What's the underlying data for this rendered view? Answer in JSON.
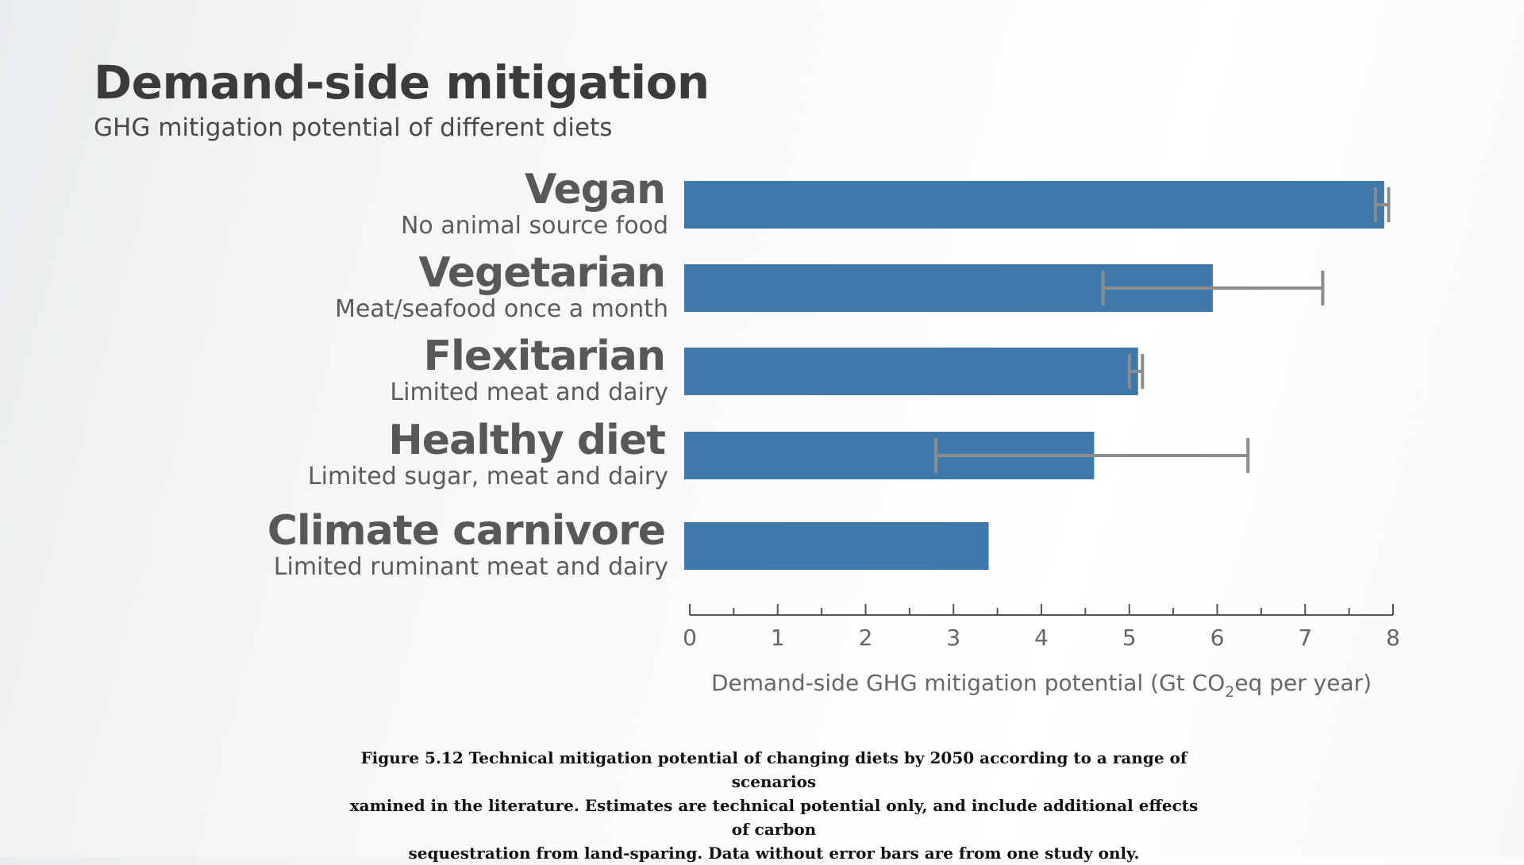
{
  "slide": {
    "title": "Demand-side mitigation",
    "subtitle": "GHG mitigation potential of different diets"
  },
  "chart_data": {
    "type": "bar",
    "orientation": "horizontal",
    "title": "Demand-side mitigation",
    "subtitle": "GHG mitigation potential of different diets",
    "categories": [
      "Vegan",
      "Vegetarian",
      "Flexitarian",
      "Healthy diet",
      "Climate carnivore"
    ],
    "descriptions": [
      "No animal source food",
      "Meat/seafood once a month",
      "Limited meat and dairy",
      "Limited sugar, meat and dairy",
      "Limited ruminant meat and dairy"
    ],
    "values": [
      7.9,
      5.95,
      5.1,
      4.6,
      3.4
    ],
    "error_bars": [
      [
        7.8,
        7.95
      ],
      [
        4.7,
        7.2
      ],
      [
        5.0,
        5.15
      ],
      [
        2.8,
        6.35
      ],
      null
    ],
    "xlim": [
      0,
      8
    ],
    "x_ticks": [
      "0",
      "1",
      "2",
      "3",
      "4",
      "5",
      "6",
      "7",
      "8"
    ],
    "xlabel_main": "Demand-side GHG mitigation potential (Gt CO",
    "xlabel_sub": "2",
    "xlabel_rest": "eq per year)",
    "bar_color": "#3f78ad",
    "error_color": "#8c8c8c"
  },
  "caption": {
    "line1": "Figure 5.12 Technical mitigation potential of changing diets by 2050 according to a range of scenarios",
    "line2": "xamined in the literature. Estimates are technical potential only, and include additional effects of carbon",
    "line3": "sequestration from land-sparing. Data without error bars are from one study only."
  }
}
